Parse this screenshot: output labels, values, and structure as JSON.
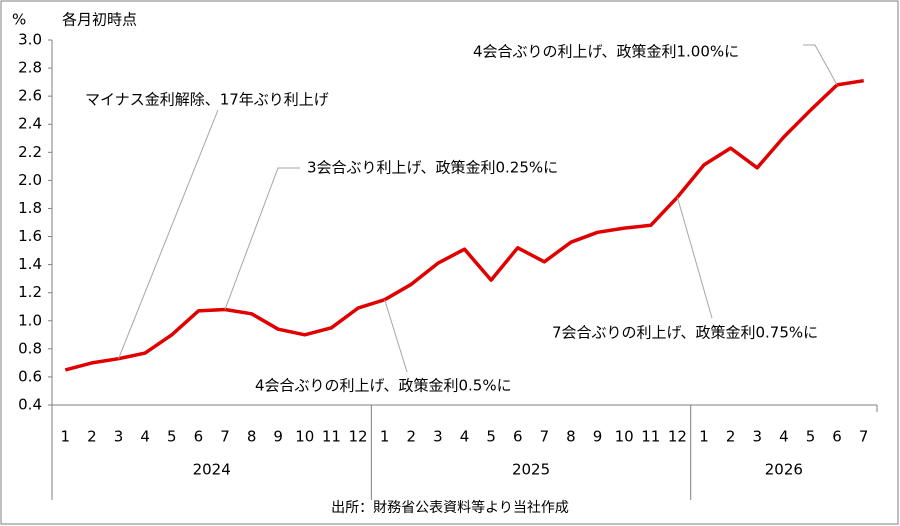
{
  "chart_data": {
    "type": "line",
    "y_unit": "%",
    "note": "各月初時点",
    "groups": [
      {
        "name": "2024",
        "categories": [
          "1",
          "2",
          "3",
          "4",
          "5",
          "6",
          "7",
          "8",
          "9",
          "10",
          "11",
          "12"
        ]
      },
      {
        "name": "2025",
        "categories": [
          "1",
          "2",
          "3",
          "4",
          "5",
          "6",
          "7",
          "8",
          "9",
          "10",
          "11",
          "12"
        ]
      },
      {
        "name": "2026",
        "categories": [
          "1",
          "2",
          "3",
          "4",
          "5",
          "6",
          "7"
        ]
      }
    ],
    "values": [
      0.65,
      0.7,
      0.73,
      0.77,
      0.9,
      1.07,
      1.08,
      1.05,
      0.94,
      0.9,
      0.95,
      1.09,
      1.15,
      1.26,
      1.41,
      1.51,
      1.29,
      1.52,
      1.42,
      1.56,
      1.63,
      1.66,
      1.68,
      1.88,
      2.11,
      2.23,
      2.09,
      2.31,
      2.5,
      2.68,
      2.71
    ],
    "color": "#e00000",
    "ylim": [
      0.4,
      3.0
    ],
    "yticks": [
      0.4,
      0.6,
      0.8,
      {
        "value": 1.0,
        "label": "1.0"
      },
      1.2,
      1.4,
      1.6,
      1.8,
      {
        "value": 2.0,
        "label": "2.0"
      },
      2.2,
      2.4,
      2.6,
      2.8,
      {
        "value": 3.0,
        "label": "3.0"
      }
    ],
    "annotations": [
      "マイナス金利解除、17年ぶり利上げ",
      "3会合ぶり利上げ、政策金利0.25%に",
      "4会合ぶりの利上げ、政策金利0.5%に",
      "7会合ぶりの利上げ、政策金利0.75%に",
      "4会合ぶりの利上げ、政策金利1.00%に"
    ],
    "source": "出所：財務省公表資料等より当社作成"
  }
}
